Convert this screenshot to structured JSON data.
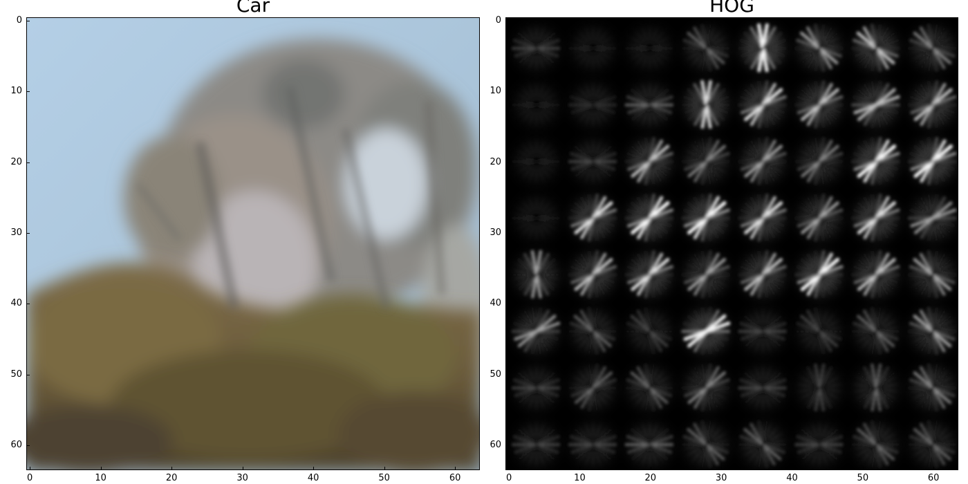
{
  "left_panel": {
    "title": "Car",
    "x_ticks": [
      "0",
      "10",
      "20",
      "30",
      "40",
      "50",
      "60"
    ],
    "y_ticks": [
      "0",
      "10",
      "20",
      "30",
      "40",
      "50",
      "60"
    ],
    "xlim": [
      0,
      64
    ],
    "ylim": [
      64,
      0
    ]
  },
  "right_panel": {
    "title": "HOG",
    "x_ticks": [
      "0",
      "10",
      "20",
      "30",
      "40",
      "50",
      "60"
    ],
    "y_ticks": [
      "0",
      "10",
      "20",
      "30",
      "40",
      "50",
      "60"
    ],
    "xlim": [
      0,
      64
    ],
    "ylim": [
      64,
      0
    ],
    "grid_cells": 8,
    "orientations": [
      [
        0,
        0,
        0,
        1,
        2,
        1,
        1,
        1
      ],
      [
        0,
        0,
        0,
        2,
        3,
        3,
        4,
        3
      ],
      [
        0,
        0,
        3,
        3,
        3,
        3,
        3,
        3
      ],
      [
        0,
        3,
        3,
        3,
        3,
        3,
        3,
        4
      ],
      [
        2,
        3,
        3,
        3,
        3,
        3,
        3,
        1
      ],
      [
        4,
        1,
        1,
        4,
        0,
        1,
        1,
        1
      ],
      [
        0,
        3,
        1,
        3,
        0,
        2,
        2,
        1
      ],
      [
        0,
        0,
        0,
        1,
        1,
        0,
        1,
        1
      ]
    ],
    "strengths": [
      [
        0.3,
        0.1,
        0.1,
        0.4,
        0.9,
        0.6,
        0.7,
        0.5
      ],
      [
        0.1,
        0.2,
        0.4,
        0.8,
        0.8,
        0.7,
        0.7,
        0.7
      ],
      [
        0.1,
        0.3,
        0.7,
        0.5,
        0.6,
        0.5,
        0.9,
        0.9
      ],
      [
        0.1,
        0.8,
        0.9,
        0.9,
        0.8,
        0.6,
        0.8,
        0.6
      ],
      [
        0.6,
        0.7,
        0.8,
        0.6,
        0.7,
        0.9,
        0.7,
        0.6
      ],
      [
        0.6,
        0.4,
        0.3,
        0.9,
        0.3,
        0.3,
        0.4,
        0.6
      ],
      [
        0.3,
        0.4,
        0.4,
        0.5,
        0.3,
        0.3,
        0.4,
        0.5
      ],
      [
        0.3,
        0.3,
        0.4,
        0.4,
        0.4,
        0.3,
        0.4,
        0.4
      ]
    ]
  }
}
